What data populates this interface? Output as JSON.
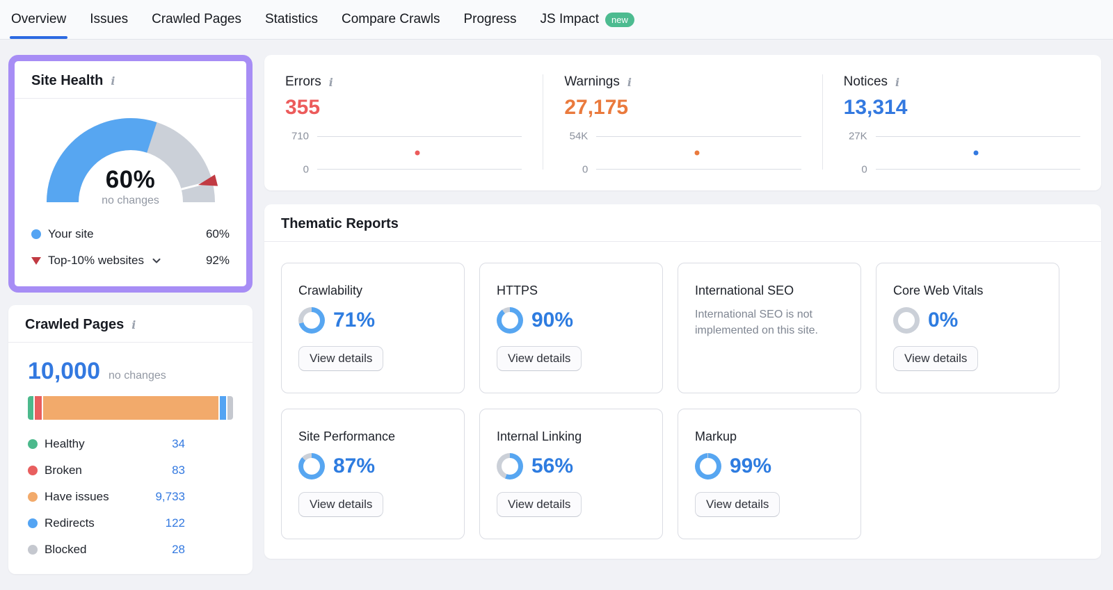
{
  "colors": {
    "accent_blue": "#3379e0",
    "gauge_blue": "#57a6f1",
    "gauge_gray": "#cbd0d8",
    "highlight_purple": "#a78df5",
    "errors_red": "#ec5b5b",
    "warnings_orange": "#ea7a3d",
    "notices_blue": "#3379e0",
    "healthy_green": "#4cb98c",
    "broken_red": "#e85f5f",
    "issues_orange": "#f2aa6b",
    "redirects_blue": "#54a4f3",
    "blocked_gray": "#c5c8cf",
    "badge_green": "#4dbb90"
  },
  "nav": {
    "items": [
      {
        "label": "Overview",
        "active": true
      },
      {
        "label": "Issues",
        "active": false
      },
      {
        "label": "Crawled Pages",
        "active": false
      },
      {
        "label": "Statistics",
        "active": false
      },
      {
        "label": "Compare Crawls",
        "active": false
      },
      {
        "label": "Progress",
        "active": false
      },
      {
        "label": "JS Impact",
        "active": false,
        "badge": "new"
      }
    ]
  },
  "site_health": {
    "title": "Site Health",
    "gauge": {
      "value_pct": 60,
      "center_label": "60%",
      "sub_label": "no changes",
      "benchmark_pct": 92
    },
    "legend": [
      {
        "label": "Your site",
        "value": "60%",
        "marker": "blue-dot",
        "has_dropdown": false
      },
      {
        "label": "Top-10% websites",
        "value": "92%",
        "marker": "red-triangle",
        "has_dropdown": true
      }
    ]
  },
  "crawled_pages": {
    "title": "Crawled Pages",
    "total": "10,000",
    "total_note": "no changes",
    "bar_segments": [
      {
        "name": "Healthy",
        "color": "#4cb98c",
        "basis": "8px",
        "grow": 0
      },
      {
        "name": "Broken",
        "color": "#e85f5f",
        "basis": "10px",
        "grow": 0
      },
      {
        "name": "Have issues",
        "color": "#f2aa6b",
        "basis": "0",
        "grow": 1
      },
      {
        "name": "Redirects",
        "color": "#54a4f3",
        "basis": "9px",
        "grow": 0
      },
      {
        "name": "Blocked",
        "color": "#c5c8cf",
        "basis": "8px",
        "grow": 0
      }
    ],
    "legend": [
      {
        "label": "Healthy",
        "value": "34",
        "color": "#4cb98c"
      },
      {
        "label": "Broken",
        "value": "83",
        "color": "#e85f5f"
      },
      {
        "label": "Have issues",
        "value": "9,733",
        "color": "#f2aa6b"
      },
      {
        "label": "Redirects",
        "value": "122",
        "color": "#54a4f3"
      },
      {
        "label": "Blocked",
        "value": "28",
        "color": "#c5c8cf"
      }
    ]
  },
  "stats": [
    {
      "label": "Errors",
      "value": "355",
      "value_num": 355,
      "axis_max": "710",
      "axis_max_num": 710,
      "axis_min": "0",
      "color": "#ec5b5b"
    },
    {
      "label": "Warnings",
      "value": "27,175",
      "value_num": 27175,
      "axis_max": "54K",
      "axis_max_num": 54000,
      "axis_min": "0",
      "color": "#ea7a3d"
    },
    {
      "label": "Notices",
      "value": "13,314",
      "value_num": 13314,
      "axis_max": "27K",
      "axis_max_num": 27000,
      "axis_min": "0",
      "color": "#3379e0"
    }
  ],
  "thematic": {
    "title": "Thematic Reports",
    "view_details_label": "View details",
    "cards": [
      {
        "title": "Crawlability",
        "pct": 71,
        "pct_label": "71%",
        "has_button": true
      },
      {
        "title": "HTTPS",
        "pct": 90,
        "pct_label": "90%",
        "has_button": true
      },
      {
        "title": "International SEO",
        "description": "International SEO is not implemented on this site.",
        "has_button": false
      },
      {
        "title": "Core Web Vitals",
        "pct": 0,
        "pct_label": "0%",
        "has_button": true
      },
      {
        "title": "Site Performance",
        "pct": 87,
        "pct_label": "87%",
        "has_button": true
      },
      {
        "title": "Internal Linking",
        "pct": 56,
        "pct_label": "56%",
        "has_button": true
      },
      {
        "title": "Markup",
        "pct": 99,
        "pct_label": "99%",
        "has_button": true
      }
    ]
  }
}
